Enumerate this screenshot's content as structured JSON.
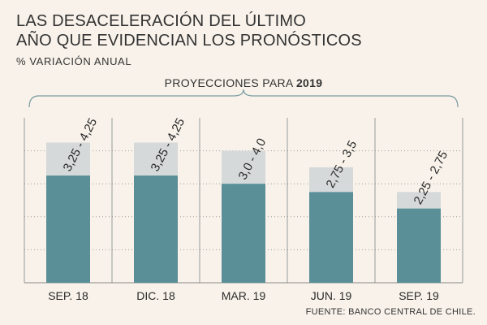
{
  "header": {
    "title_line1": "LAS DESACELERACIÓN DEL ÚLTIMO",
    "title_line2": "AÑO QUE EVIDENCIAN LOS PRONÓSTICOS",
    "subtitle": "% VARIACIÓN ANUAL"
  },
  "projection": {
    "label": "PROYECCIONES PARA ",
    "year": "2019"
  },
  "source": "FUENTE: BANCO CENTRAL DE CHILE.",
  "colors": {
    "bar_low": "#5a8f98",
    "bar_range": "#d5d9da",
    "background": "#f8f2ea",
    "divider": "#999999"
  },
  "chart_data": {
    "type": "bar",
    "categories": [
      "SEP. 18",
      "DIC. 18",
      "MAR. 19",
      "JUN. 19",
      "SEP. 19"
    ],
    "low": [
      3.25,
      3.25,
      3.0,
      2.75,
      2.25
    ],
    "high": [
      4.25,
      4.25,
      4.0,
      3.5,
      2.75
    ],
    "range_labels": [
      "3,25 - 4,25",
      "3,25 - 4,25",
      "3,0 - 4,0",
      "2,75 - 3,5",
      "2,25 - 2,75"
    ],
    "ylim": [
      0,
      5
    ],
    "grid": true
  }
}
